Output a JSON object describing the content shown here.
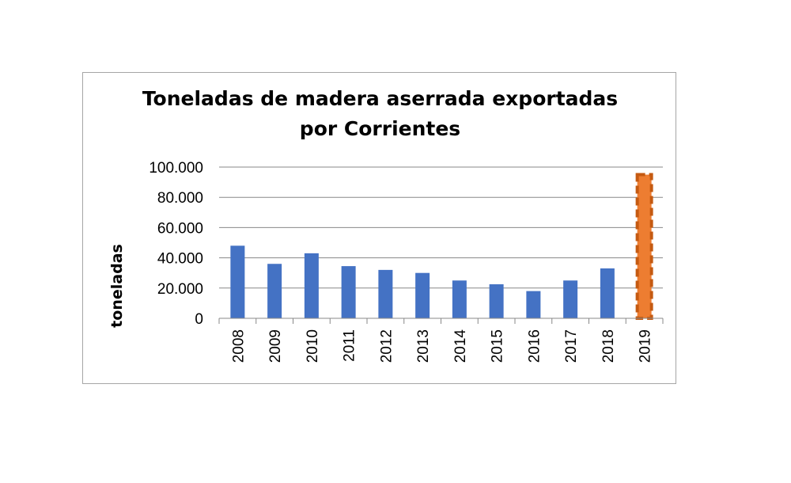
{
  "chart_data": {
    "type": "bar",
    "title": "Toneladas de madera aserrada exportadas\npor Corrientes",
    "xlabel": "",
    "ylabel": "toneladas",
    "categories": [
      "2008",
      "2009",
      "2010",
      "2011",
      "2012",
      "2013",
      "2014",
      "2015",
      "2016",
      "2017",
      "2018",
      "2019"
    ],
    "values": [
      48000,
      36000,
      43000,
      34500,
      32000,
      30000,
      25000,
      22500,
      18000,
      25000,
      33000,
      95000
    ],
    "ylim": [
      0,
      100000
    ],
    "yticks": [
      0,
      20000,
      40000,
      60000,
      80000,
      100000
    ],
    "ytick_labels": [
      "0",
      "20.000",
      "40.000",
      "60.000",
      "80.000",
      "100.000"
    ],
    "grid": true,
    "legend": "none",
    "colors": {
      "bar": "#4472c4",
      "highlight_fill": "#ed7d31",
      "highlight_border": "#c55a11",
      "gridline": "#888888"
    },
    "highlight_category": "2019",
    "highlight_style": "dashed-border"
  }
}
